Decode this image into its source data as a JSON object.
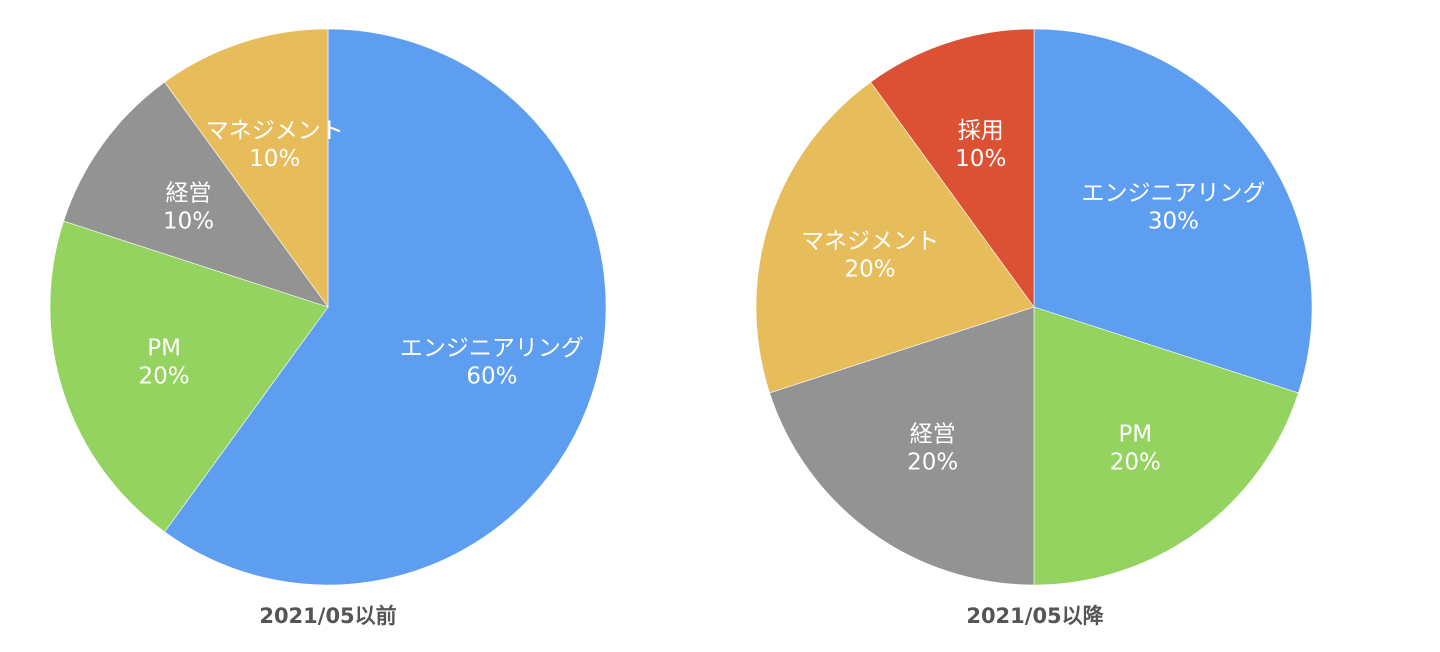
{
  "chart_data": [
    {
      "type": "pie",
      "title": "2021/05以前",
      "slices": [
        {
          "label": "エンジニアリング",
          "value": 60,
          "value_label": "60%",
          "color": "#5d9ef0"
        },
        {
          "label": "PM",
          "value": 20,
          "value_label": "20%",
          "color": "#94d35f"
        },
        {
          "label": "経営",
          "value": 10,
          "value_label": "10%",
          "color": "#939393"
        },
        {
          "label": "マネジメント",
          "value": 10,
          "value_label": "10%",
          "color": "#e7bd5b"
        }
      ],
      "start": "top",
      "direction": "clockwise",
      "legend": "none"
    },
    {
      "type": "pie",
      "title": "2021/05以降",
      "slices": [
        {
          "label": "エンジニアリング",
          "value": 30,
          "value_label": "30%",
          "color": "#5d9ef0"
        },
        {
          "label": "PM",
          "value": 20,
          "value_label": "20%",
          "color": "#94d35f"
        },
        {
          "label": "経営",
          "value": 20,
          "value_label": "20%",
          "color": "#939393"
        },
        {
          "label": "マネジメント",
          "value": 20,
          "value_label": "20%",
          "color": "#e7bd5b"
        },
        {
          "label": "採用",
          "value": 10,
          "value_label": "10%",
          "color": "#dc5033"
        }
      ],
      "start": "top",
      "direction": "clockwise",
      "legend": "none"
    }
  ]
}
